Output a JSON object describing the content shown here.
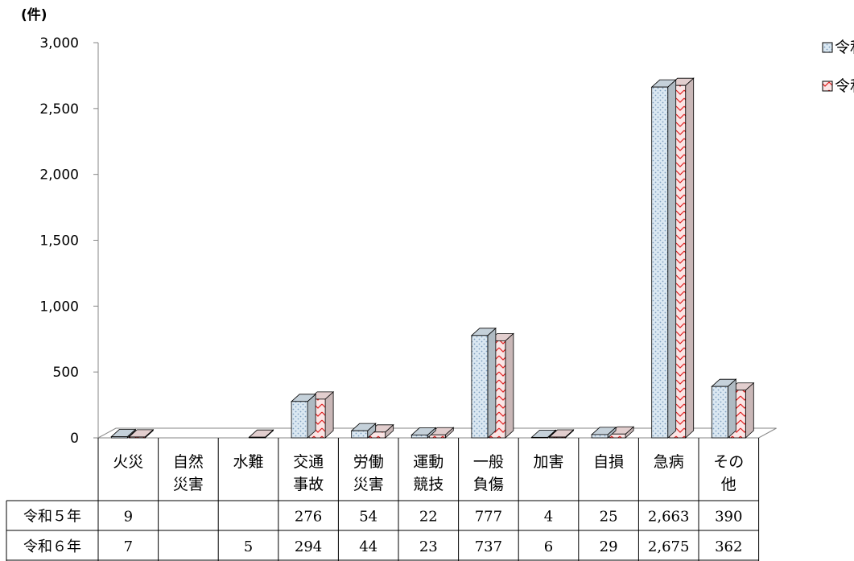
{
  "chart_data": {
    "type": "bar",
    "unit_label": "(件)",
    "categories": [
      [
        "火災"
      ],
      [
        "自然",
        "災害"
      ],
      [
        "水難"
      ],
      [
        "交通",
        "事故"
      ],
      [
        "労働",
        "災害"
      ],
      [
        "運動",
        "競技"
      ],
      [
        "一般",
        "負傷"
      ],
      [
        "加害"
      ],
      [
        "自損"
      ],
      [
        "急病"
      ],
      [
        "その",
        "他"
      ]
    ],
    "series": [
      {
        "name": "令和５年",
        "values": [
          9,
          null,
          null,
          276,
          54,
          22,
          777,
          4,
          25,
          2663,
          390
        ],
        "display": [
          "9",
          "",
          "",
          "276",
          "54",
          "22",
          "777",
          "4",
          "25",
          "2,663",
          "390"
        ],
        "fill": "#dbe8f2",
        "dots": "#7f9fbf",
        "stroke": "#000000"
      },
      {
        "name": "令和６年",
        "values": [
          7,
          null,
          5,
          294,
          44,
          23,
          737,
          6,
          29,
          2675,
          362
        ],
        "display": [
          "7",
          "",
          "5",
          "294",
          "44",
          "23",
          "737",
          "6",
          "29",
          "2,675",
          "362"
        ],
        "fill": "#fbe5e5",
        "dots": "#e02020",
        "stroke": "#000000"
      }
    ],
    "y_ticks": [
      "3,000",
      "2,500",
      "2,000",
      "1,500",
      "1,000",
      "500",
      "0"
    ],
    "y_tick_values": [
      3000,
      2500,
      2000,
      1500,
      1000,
      500,
      0
    ],
    "ylim": [
      0,
      3000
    ],
    "grid": false,
    "legend_position": "top-right"
  }
}
